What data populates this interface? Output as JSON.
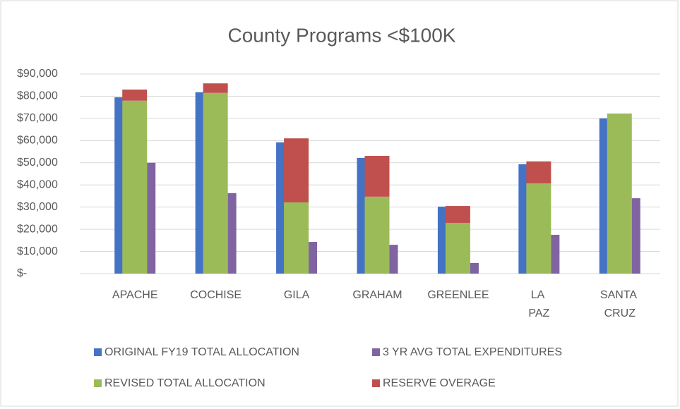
{
  "chart_data": {
    "type": "bar",
    "title": "County Programs <$100K",
    "categories": [
      "APACHE",
      "COCHISE",
      "GILA",
      "GRAHAM",
      "GREENLEE",
      "LA PAZ",
      "SANTA CRUZ"
    ],
    "series": [
      {
        "name": "ORIGINAL FY19 TOTAL ALLOCATION",
        "color": "#4472c4",
        "stack": 0,
        "values": [
          79500,
          81800,
          59200,
          52200,
          30200,
          49300,
          70000
        ]
      },
      {
        "name": "REVISED TOTAL ALLOCATION",
        "color": "#9bbb59",
        "stack": 1,
        "values": [
          78000,
          81500,
          32100,
          34700,
          22900,
          40700,
          72200
        ]
      },
      {
        "name": "RESERVE OVERAGE",
        "color": "#c0504d",
        "stack": 1,
        "values": [
          5000,
          4300,
          28900,
          18400,
          7600,
          9900,
          0
        ]
      },
      {
        "name": "3 YR AVG TOTAL EXPENDITURES",
        "color": "#8064a2",
        "stack": 2,
        "values": [
          50000,
          36300,
          14300,
          13000,
          4800,
          17500,
          34000
        ]
      }
    ],
    "ylim": [
      0,
      90000
    ],
    "yticks": [
      {
        "value": 0,
        "label": "$-"
      },
      {
        "value": 10000,
        "label": "$10,000"
      },
      {
        "value": 20000,
        "label": "$20,000"
      },
      {
        "value": 30000,
        "label": "$30,000"
      },
      {
        "value": 40000,
        "label": "$40,000"
      },
      {
        "value": 50000,
        "label": "$50,000"
      },
      {
        "value": 60000,
        "label": "$60,000"
      },
      {
        "value": 70000,
        "label": "$70,000"
      },
      {
        "value": 80000,
        "label": "$80,000"
      },
      {
        "value": 90000,
        "label": "$90,000"
      }
    ],
    "grid": true,
    "legend": "bottom"
  }
}
